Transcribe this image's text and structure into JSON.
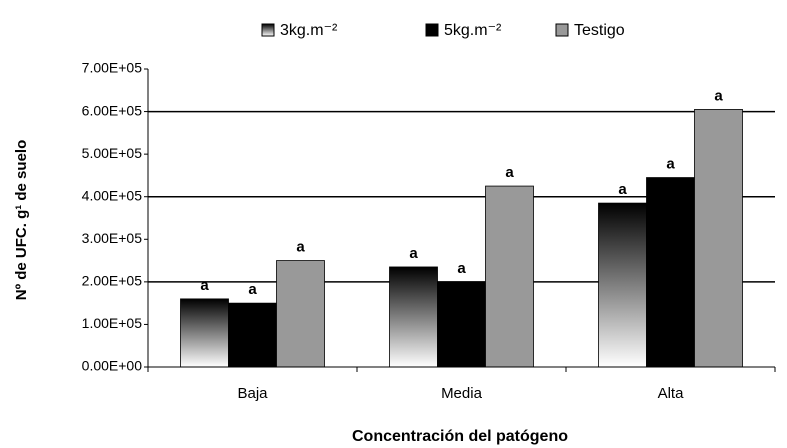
{
  "chart_data": {
    "type": "bar",
    "categories": [
      "Baja",
      "Media",
      "Alta"
    ],
    "x_label": "Concentración del  patógeno",
    "y_label": "Nº de UFC. g¹ de suelo",
    "series": [
      {
        "name": "3kg.m⁻²",
        "color": "#000000",
        "gradient": true,
        "values": [
          160000,
          235000,
          385000
        ],
        "labels": [
          "a",
          "a",
          "a"
        ]
      },
      {
        "name": "5kg.m⁻²",
        "color": "#000000",
        "values": [
          150000,
          200000,
          445000
        ],
        "labels": [
          "a",
          "a",
          "a"
        ]
      },
      {
        "name": "Testigo",
        "color": "#999999",
        "values": [
          250000,
          425000,
          605000
        ],
        "labels": [
          "a",
          "a",
          "a"
        ]
      }
    ],
    "ylim": [
      0,
      700000
    ],
    "yticks": [
      {
        "value": 0,
        "label": "0.00E+00"
      },
      {
        "value": 100000,
        "label": "1.00E+05"
      },
      {
        "value": 200000,
        "label": "2.00E+05"
      },
      {
        "value": 300000,
        "label": "3.00E+05"
      },
      {
        "value": 400000,
        "label": "4.00E+05"
      },
      {
        "value": 500000,
        "label": "5.00E+05"
      },
      {
        "value": 600000,
        "label": "6.00E+05"
      },
      {
        "value": 700000,
        "label": "7.00E+05"
      }
    ],
    "gridlines": [
      200000,
      400000,
      600000
    ],
    "legend": "top"
  }
}
